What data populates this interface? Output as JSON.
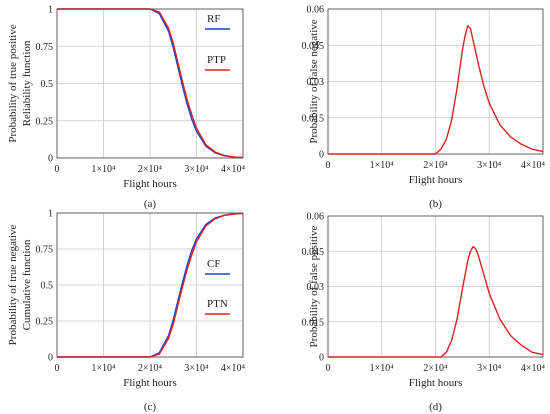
{
  "chart_data": [
    {
      "panel": "(a)",
      "type": "line",
      "xlabel": "Flight hours",
      "ylabel": [
        "Probability of true positive",
        "Reliability function"
      ],
      "xlim": [
        0,
        40000
      ],
      "ylim": [
        0,
        1
      ],
      "xticks": [
        "0",
        "1×10⁴",
        "2×10⁴",
        "3×10⁴",
        "4×10⁴"
      ],
      "yticks": [
        "0",
        "0.25",
        "0.5",
        "0.75",
        "1"
      ],
      "grid": true,
      "legend_placement": "right",
      "series": [
        {
          "name": "RF",
          "color": "#1f3fd8",
          "x": [
            0,
            20000,
            22000,
            24000,
            25000,
            26000,
            27000,
            28000,
            29000,
            30000,
            32000,
            34000,
            36000,
            38000,
            40000
          ],
          "y": [
            1,
            1,
            0.97,
            0.85,
            0.74,
            0.61,
            0.48,
            0.36,
            0.26,
            0.18,
            0.08,
            0.035,
            0.015,
            0.006,
            0.002
          ]
        },
        {
          "name": "PTP",
          "color": "#e02020",
          "x": [
            0,
            20000,
            22000,
            24000,
            25000,
            26000,
            27000,
            28000,
            29000,
            30000,
            32000,
            34000,
            36000,
            38000,
            40000
          ],
          "y": [
            1,
            1,
            0.98,
            0.87,
            0.77,
            0.64,
            0.51,
            0.39,
            0.29,
            0.2,
            0.09,
            0.04,
            0.017,
            0.007,
            0.003
          ]
        }
      ]
    },
    {
      "panel": "(b)",
      "type": "line",
      "xlabel": "Flight hours",
      "ylabel": [
        "Probability of false negative"
      ],
      "xlim": [
        0,
        40000
      ],
      "ylim": [
        0,
        0.06
      ],
      "xticks": [
        "0",
        "1×10⁴",
        "2×10⁴",
        "3×10⁴",
        "4×10⁴"
      ],
      "yticks": [
        "0",
        "0.015",
        "0.03",
        "0.045",
        "0.06"
      ],
      "grid": true,
      "series": [
        {
          "color": "#e02020",
          "x": [
            0,
            20000,
            21000,
            22000,
            23000,
            24000,
            25000,
            25500,
            26000,
            26500,
            27000,
            28000,
            29000,
            30000,
            32000,
            34000,
            36000,
            38000,
            40000
          ],
          "y": [
            0,
            0,
            0.002,
            0.006,
            0.014,
            0.027,
            0.043,
            0.049,
            0.053,
            0.052,
            0.047,
            0.037,
            0.028,
            0.021,
            0.012,
            0.007,
            0.004,
            0.002,
            0.001
          ]
        }
      ]
    },
    {
      "panel": "(c)",
      "type": "line",
      "xlabel": "Flight hours",
      "ylabel": [
        "Probability of true negative",
        "Cumulative function"
      ],
      "xlim": [
        0,
        40000
      ],
      "ylim": [
        0,
        1
      ],
      "xticks": [
        "0",
        "1×10⁴",
        "2×10⁴",
        "3×10⁴",
        "4×10⁴"
      ],
      "yticks": [
        "0",
        "0.25",
        "0.5",
        "0.75",
        "1"
      ],
      "grid": true,
      "legend_placement": "right",
      "series": [
        {
          "name": "CF",
          "color": "#1f3fd8",
          "x": [
            0,
            20000,
            22000,
            24000,
            25000,
            26000,
            27000,
            28000,
            29000,
            30000,
            32000,
            34000,
            36000,
            38000,
            40000
          ],
          "y": [
            0,
            0,
            0.03,
            0.15,
            0.26,
            0.39,
            0.52,
            0.64,
            0.74,
            0.82,
            0.92,
            0.965,
            0.985,
            0.994,
            0.998
          ]
        },
        {
          "name": "PTN",
          "color": "#e02020",
          "x": [
            0,
            20000,
            22000,
            24000,
            25000,
            26000,
            27000,
            28000,
            29000,
            30000,
            32000,
            34000,
            36000,
            38000,
            40000
          ],
          "y": [
            0,
            0,
            0.02,
            0.13,
            0.23,
            0.36,
            0.49,
            0.61,
            0.71,
            0.8,
            0.91,
            0.96,
            0.983,
            0.993,
            0.997
          ]
        }
      ]
    },
    {
      "panel": "(d)",
      "type": "line",
      "xlabel": "Flight hours",
      "ylabel": [
        "Probability of false positive"
      ],
      "xlim": [
        0,
        40000
      ],
      "ylim": [
        0,
        0.06
      ],
      "xticks": [
        "0",
        "1×10⁴",
        "2×10⁴",
        "3×10⁴",
        "4×10⁴"
      ],
      "yticks": [
        "0",
        "0.015",
        "0.03",
        "0.045",
        "0.06"
      ],
      "grid": true,
      "series": [
        {
          "color": "#e02020",
          "x": [
            0,
            21000,
            22000,
            23000,
            24000,
            25000,
            26000,
            26500,
            27000,
            27500,
            28000,
            29000,
            30000,
            32000,
            34000,
            36000,
            38000,
            40000
          ],
          "y": [
            0,
            0,
            0.002,
            0.007,
            0.016,
            0.029,
            0.041,
            0.045,
            0.047,
            0.046,
            0.043,
            0.035,
            0.027,
            0.016,
            0.009,
            0.005,
            0.002,
            0.001
          ]
        }
      ]
    }
  ]
}
